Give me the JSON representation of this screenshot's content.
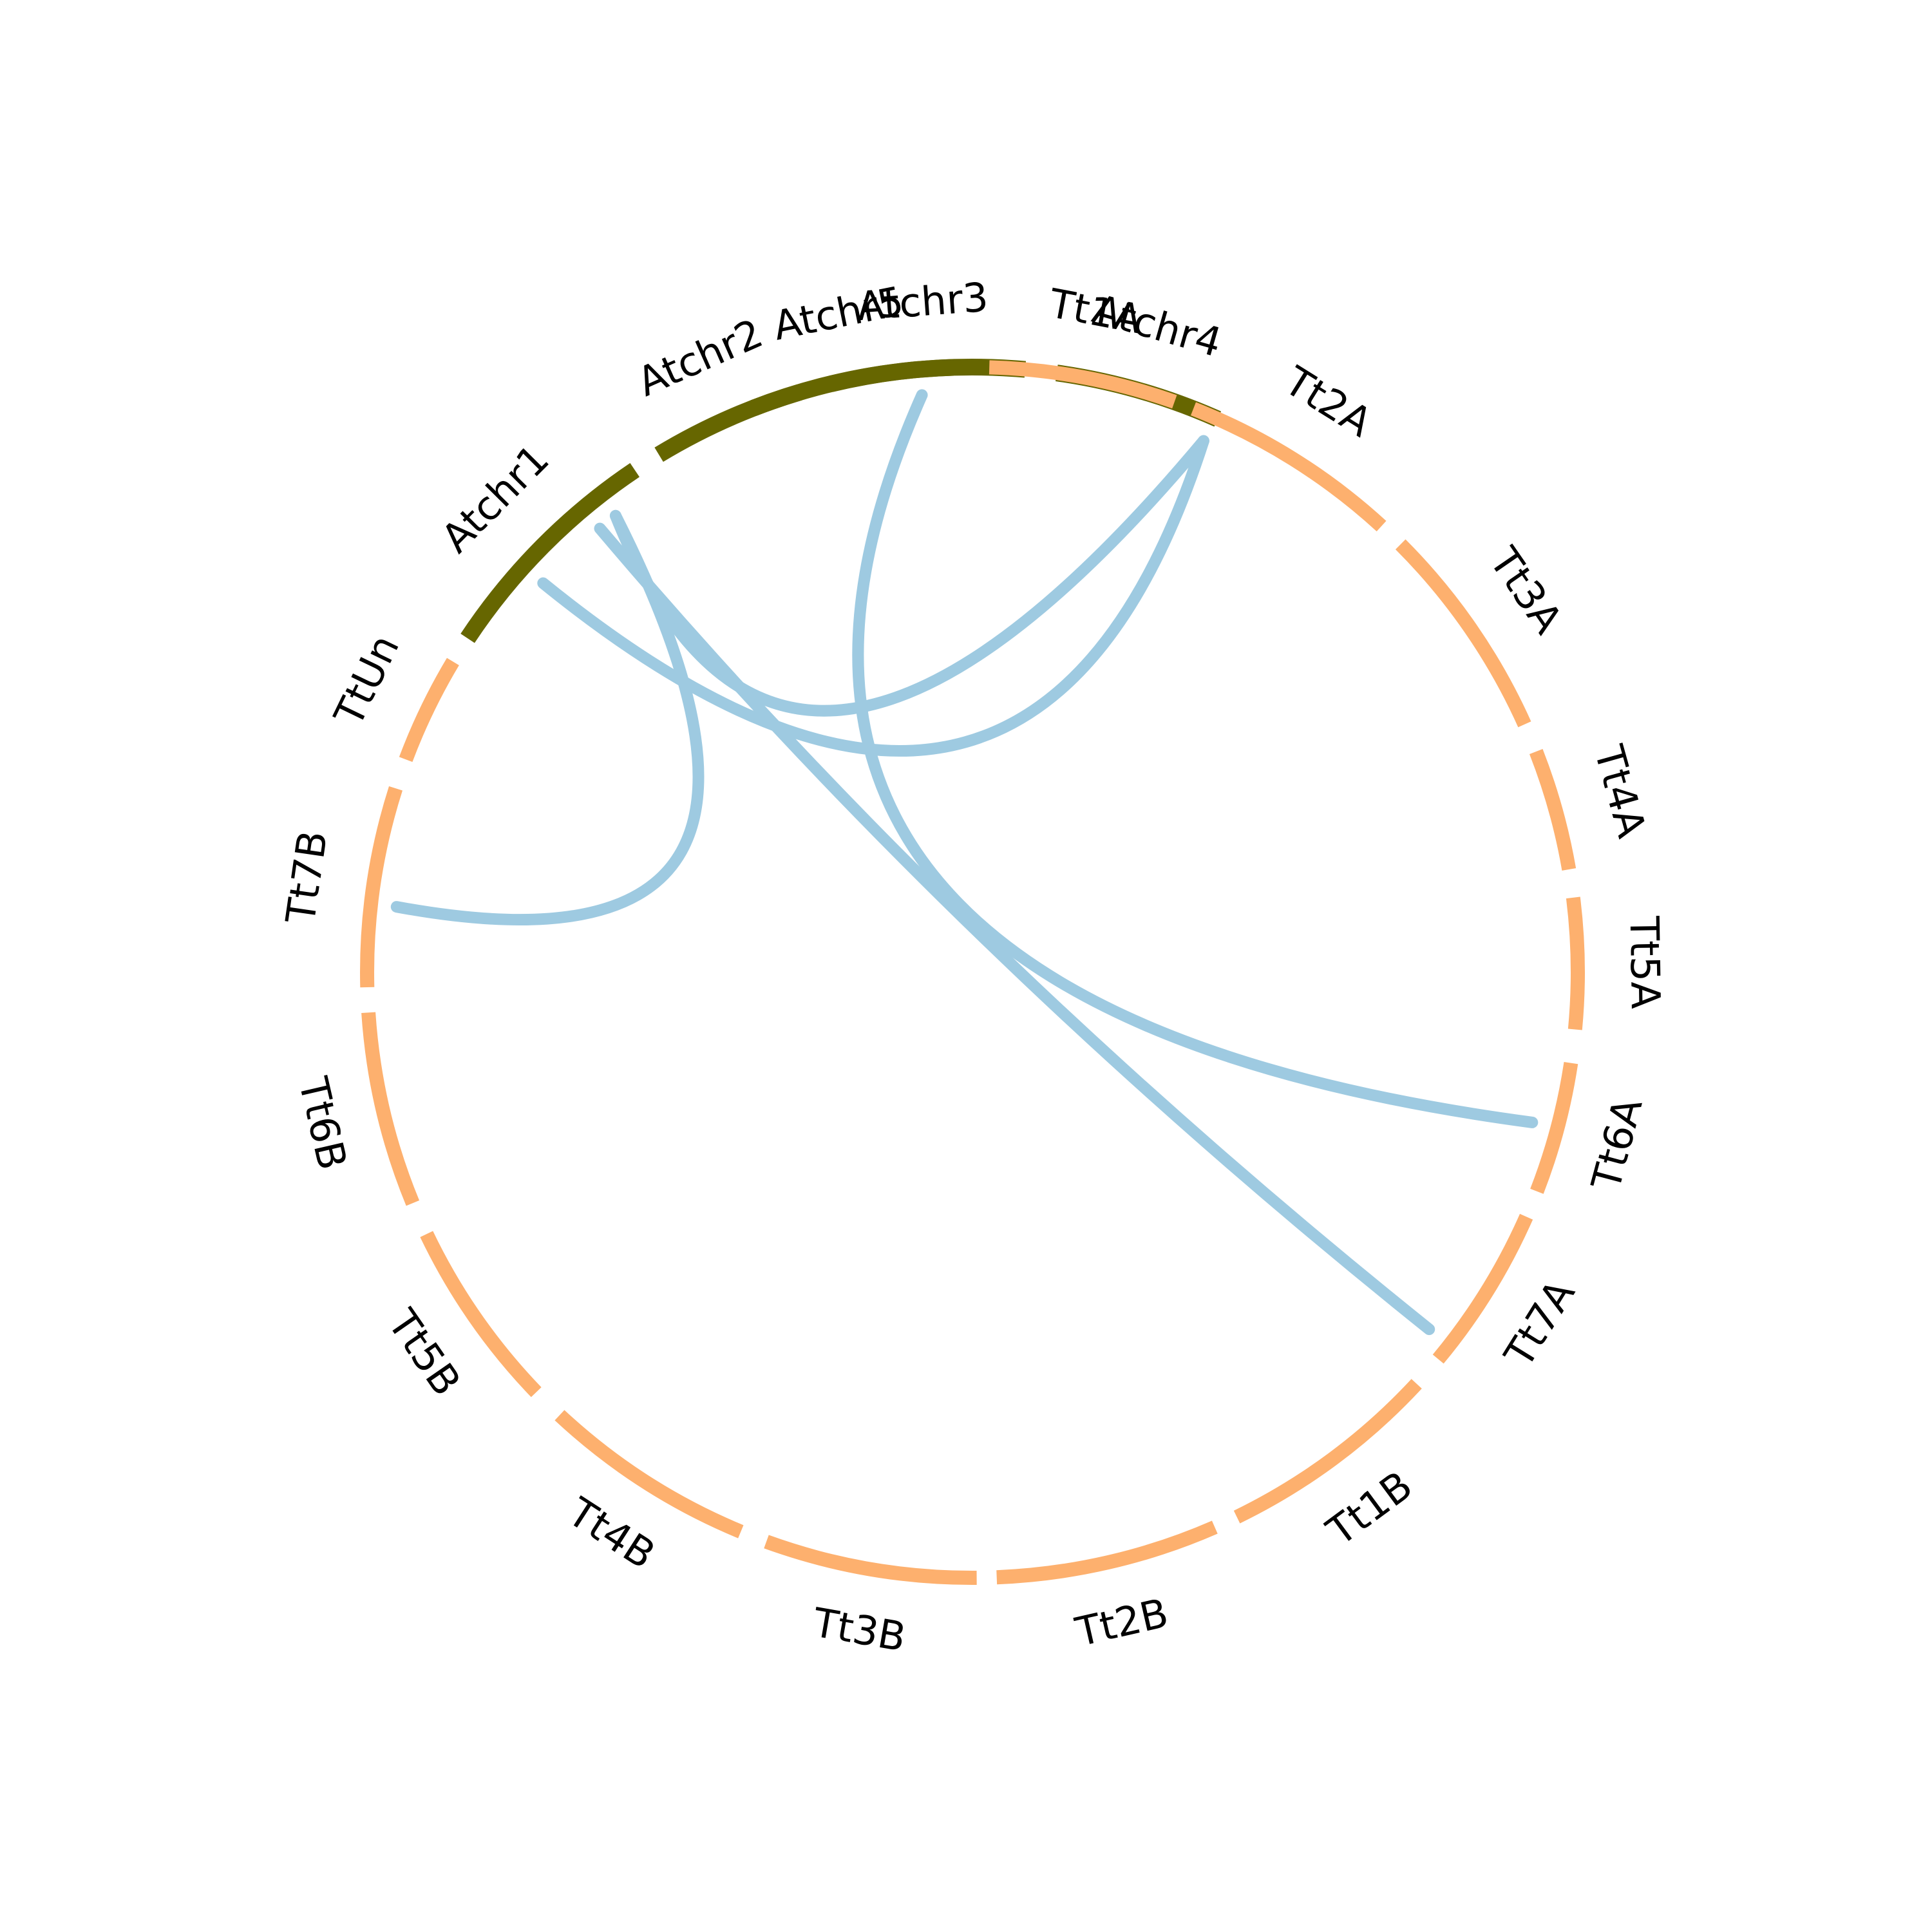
{
  "segments": [
    {
      "label": "Atchr1",
      "group": "arabidopsis",
      "start": 303.5,
      "end": 326.1
    },
    {
      "label": "Atchr2",
      "group": "arabidopsis",
      "start": 328.8,
      "end": 343.4
    },
    {
      "label": "Atchr3",
      "group": "arabidopsis",
      "start": 346.5,
      "end": 365.0
    },
    {
      "label": "Atchr4",
      "group": "arabidopsis",
      "start": 368.0,
      "end": 383.9
    },
    {
      "label": "Atchr5",
      "group": "arabidopsis",
      "start": 386.8,
      "end": 358.2
    },
    {
      "label": "Tt1A",
      "group": "wheat",
      "start": 1.6,
      "end": 19.5
    },
    {
      "label": "Tt2A",
      "group": "wheat",
      "start": 21.4,
      "end": 42.5
    },
    {
      "label": "Tt3A",
      "group": "wheat",
      "start": 45.0,
      "end": 65.8
    },
    {
      "label": "Tt4A",
      "group": "wheat",
      "start": 68.6,
      "end": 80.2
    },
    {
      "label": "Tt5A",
      "group": "wheat",
      "start": 82.9,
      "end": 95.4
    },
    {
      "label": "Tt6A",
      "group": "wheat",
      "start": 98.6,
      "end": 111.2
    },
    {
      "label": "Tt7A",
      "group": "wheat",
      "start": 113.8,
      "end": 129.7
    },
    {
      "label": "Tt1B",
      "group": "wheat",
      "start": 132.8,
      "end": 154.1
    },
    {
      "label": "Tt2B",
      "group": "wheat",
      "start": 156.4,
      "end": 177.7
    },
    {
      "label": "Tt3B",
      "group": "wheat",
      "start": 179.6,
      "end": 199.9
    },
    {
      "label": "Tt4B",
      "group": "wheat",
      "start": 202.5,
      "end": 223.0
    },
    {
      "label": "Tt5B",
      "group": "wheat",
      "start": 226.1,
      "end": 244.4
    },
    {
      "label": "Tt6B",
      "group": "wheat",
      "start": 247.6,
      "end": 266.2
    },
    {
      "label": "Tt7B",
      "group": "wheat",
      "start": 268.6,
      "end": 287.7
    },
    {
      "label": "TtUn",
      "group": "wheat",
      "start": 290.6,
      "end": 300.9
    }
  ],
  "links": [
    {
      "from": 355.0,
      "to": 105.0,
      "ctrl": [
        1010,
        1560
      ]
    },
    {
      "from": 23.5,
      "to": 322.0,
      "ctrl": [
        1220,
        1460
      ]
    },
    {
      "from": 312.2,
      "to": 23.5,
      "ctrl": [
        1600,
        1520
      ]
    },
    {
      "from": 320.0,
      "to": 128.0,
      "ctrl": [
        1490,
        1480
      ]
    },
    {
      "from": 322.0,
      "to": 276.5,
      "ctrl": [
        1330,
        1540
      ]
    }
  ],
  "colors": {
    "arabidopsis": "#666600",
    "wheat": "#fdb06e",
    "link": "#9ecae1"
  }
}
